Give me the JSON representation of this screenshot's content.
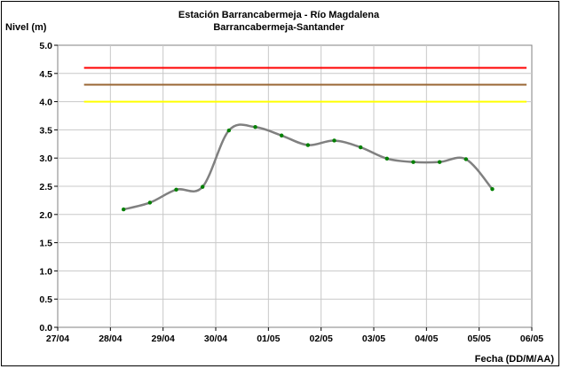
{
  "chart_data": {
    "type": "line",
    "title": "Estación Barrancabermeja - Río Magdalena",
    "subtitle": "Barrancabermeja-Santander",
    "ylabel": "Nivel (m)",
    "xlabel": "Fecha (DD/M/AA)",
    "xlim": [
      "27/04",
      "06/05"
    ],
    "ylim": [
      0,
      5
    ],
    "ystep": 0.5,
    "x_ticks": [
      "27/04",
      "28/04",
      "29/04",
      "30/04",
      "01/05",
      "02/05",
      "03/05",
      "04/05",
      "05/05",
      "06/05"
    ],
    "y_ticks": [
      "0.0",
      "0.5",
      "1.0",
      "1.5",
      "2.0",
      "2.5",
      "3.0",
      "3.5",
      "4.0",
      "4.5",
      "5.0"
    ],
    "grid": true,
    "legend": "none",
    "thresholds": [
      {
        "value": 4.6,
        "color": "#ff0000"
      },
      {
        "value": 4.3,
        "color": "#996633"
      },
      {
        "value": 4.0,
        "color": "#ffff00"
      }
    ],
    "threshold_x_range": [
      0.5,
      8.9
    ],
    "series": [
      {
        "line_color": "#808080",
        "marker_color": "#008000",
        "x": [
          1.25,
          1.75,
          2.25,
          2.75,
          3.25,
          3.75,
          4.25,
          4.75,
          5.25,
          5.75,
          6.25,
          6.75,
          7.25,
          7.75,
          8.25
        ],
        "y": [
          2.09,
          2.21,
          2.44,
          2.49,
          3.49,
          3.55,
          3.4,
          3.23,
          3.31,
          3.19,
          2.99,
          2.93,
          2.93,
          2.98,
          2.45
        ]
      }
    ]
  }
}
